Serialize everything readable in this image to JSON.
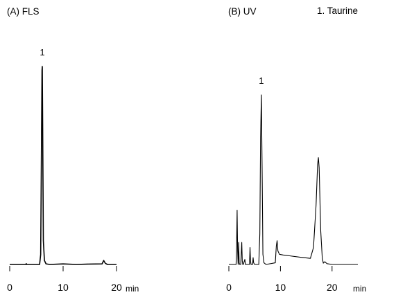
{
  "legend": {
    "compound": "1. Taurine"
  },
  "chart_data": [
    {
      "type": "line",
      "title": "(A) FLS",
      "xlabel": "min",
      "ylabel": "",
      "xlim": [
        0,
        20
      ],
      "ylim": [
        0,
        100
      ],
      "xticks": [
        "0",
        "10",
        "20"
      ],
      "peak_labels": [
        {
          "text": "1",
          "x": 6.1,
          "y": 100
        }
      ],
      "series": [
        {
          "x": [
            0,
            3.0,
            3.1,
            3.2,
            5.6,
            5.8,
            5.95,
            6.05,
            6.1,
            6.15,
            6.3,
            6.5,
            6.8,
            7.5,
            10,
            12.5,
            15,
            17.3,
            17.6,
            17.9,
            18.3,
            20
          ],
          "y": [
            0,
            0,
            0.4,
            0,
            0,
            5,
            60,
            98,
            100,
            80,
            12,
            2,
            0.3,
            0,
            0.3,
            0,
            0.2,
            0.3,
            2.0,
            0.6,
            0,
            0
          ]
        }
      ]
    },
    {
      "type": "line",
      "title": "(B) UV",
      "xlabel": "min",
      "ylabel": "",
      "xlim": [
        0,
        25
      ],
      "ylim": [
        0,
        100
      ],
      "xticks": [
        "0",
        "10",
        "20"
      ],
      "peak_labels": [
        {
          "text": "1",
          "x": 6.3,
          "y": 100
        }
      ],
      "series": [
        {
          "x": [
            0,
            1.4,
            1.5,
            1.6,
            1.7,
            1.8,
            1.9,
            2.0,
            2.1,
            2.3,
            2.5,
            2.6,
            2.7,
            2.8,
            3.1,
            3.2,
            3.3,
            3.5,
            4.0,
            4.1,
            4.2,
            4.3,
            4.6,
            4.7,
            4.8,
            5.0,
            5.8,
            6.0,
            6.15,
            6.3,
            6.45,
            6.6,
            6.8,
            7.2,
            9.0,
            9.2,
            9.35,
            9.5,
            9.8,
            10.5,
            12,
            14,
            15.8,
            16.4,
            16.9,
            17.2,
            17.35,
            17.5,
            17.8,
            18.1,
            18.3,
            18.6,
            19.0,
            20,
            25
          ],
          "y": [
            0,
            0,
            12,
            32,
            8,
            0,
            13,
            1,
            0,
            0,
            13,
            2,
            0,
            0,
            3,
            0,
            0,
            0,
            0,
            10,
            2,
            0,
            0,
            4,
            1,
            0,
            0,
            18,
            75,
            100,
            55,
            6,
            1,
            0,
            1,
            11,
            14,
            8,
            6,
            5.6,
            5.0,
            4.2,
            3.6,
            10,
            35,
            59,
            63,
            57,
            20,
            4,
            0.8,
            1.6,
            0.5,
            0,
            0
          ]
        }
      ]
    }
  ]
}
